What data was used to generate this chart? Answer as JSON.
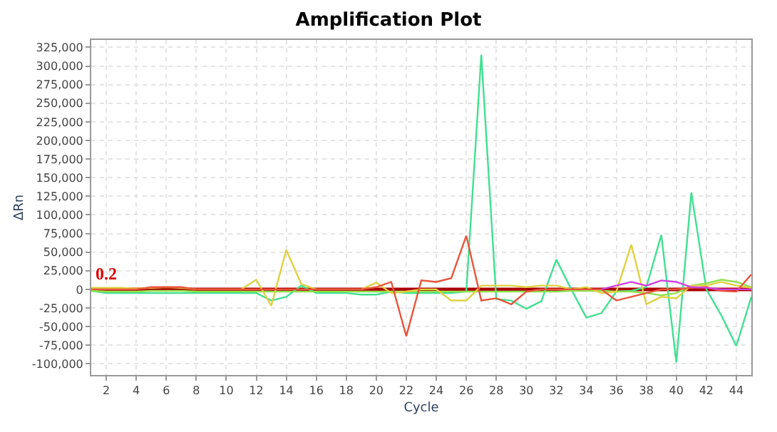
{
  "chart_data": {
    "type": "line",
    "title": "Amplification Plot",
    "xlabel": "Cycle",
    "ylabel": "ΔRn",
    "x": [
      1,
      2,
      3,
      4,
      5,
      6,
      7,
      8,
      9,
      10,
      11,
      12,
      13,
      14,
      15,
      16,
      17,
      18,
      19,
      20,
      21,
      22,
      23,
      24,
      25,
      26,
      27,
      28,
      29,
      30,
      31,
      32,
      33,
      34,
      35,
      36,
      37,
      38,
      39,
      40,
      41,
      42,
      43,
      44,
      45
    ],
    "series": [
      {
        "color": "#40e090",
        "values": [
          -2000,
          -5000,
          -5000,
          -5000,
          -5000,
          -5000,
          -5000,
          -5000,
          -5000,
          -5000,
          -5000,
          -5000,
          -15000,
          -10000,
          5000,
          -5000,
          -5000,
          -5000,
          -7000,
          -7000,
          -3000,
          -5000,
          -5000,
          -5000,
          -5000,
          -3000,
          315000,
          -13000,
          -15000,
          -26000,
          -16000,
          40000,
          0,
          -38000,
          -32000,
          -3000,
          -2000,
          3000,
          73000,
          -98000,
          130000,
          0,
          -35000,
          -76000,
          -10000
        ]
      },
      {
        "color": "#90e050",
        "values": [
          -2000,
          -3000,
          -3000,
          -3000,
          -2000,
          -2000,
          -2000,
          -3000,
          -3000,
          -3000,
          -3000,
          -3000,
          -3000,
          -3000,
          -3000,
          -3000,
          -3000,
          -3000,
          -3000,
          -3000,
          -3000,
          -3000,
          -3000,
          -3000,
          -3000,
          -3000,
          -3000,
          -3000,
          -3000,
          -3000,
          -3000,
          -3000,
          -2000,
          -2000,
          -2000,
          -3000,
          -3000,
          -5000,
          -8000,
          -5000,
          5000,
          8000,
          13000,
          10000,
          3000
        ]
      },
      {
        "color": "#e0d040",
        "values": [
          2000,
          2000,
          2000,
          1000,
          2000,
          3000,
          2000,
          0,
          0,
          0,
          0,
          13000,
          -22000,
          53000,
          7000,
          0,
          0,
          0,
          0,
          9000,
          -5000,
          -3000,
          0,
          0,
          -15000,
          -15000,
          5000,
          5000,
          5000,
          3000,
          5000,
          5000,
          0,
          3000,
          -5000,
          -3000,
          60000,
          -20000,
          -10000,
          -12000,
          5000,
          5000,
          10000,
          5000,
          2000
        ]
      },
      {
        "color": "#e8553a",
        "values": [
          0,
          0,
          0,
          0,
          3000,
          3000,
          3000,
          0,
          0,
          0,
          0,
          0,
          0,
          0,
          0,
          0,
          0,
          0,
          0,
          3000,
          10000,
          -63000,
          12000,
          10000,
          15000,
          72000,
          -15000,
          -12000,
          -20000,
          -3000,
          0,
          0,
          0,
          0,
          0,
          -15000,
          -10000,
          -5000,
          0,
          0,
          2000,
          3000,
          -2000,
          -3000,
          20000
        ]
      },
      {
        "color": "#d040e0",
        "values": [
          null,
          null,
          null,
          null,
          null,
          null,
          null,
          null,
          null,
          null,
          null,
          null,
          null,
          null,
          null,
          null,
          null,
          null,
          null,
          null,
          null,
          null,
          null,
          null,
          null,
          null,
          null,
          null,
          null,
          null,
          null,
          null,
          null,
          null,
          0,
          5000,
          10000,
          5000,
          12000,
          10000,
          3000,
          2000,
          0,
          0,
          0
        ]
      }
    ],
    "ref_lines": [
      {
        "axis": "y",
        "value": 0.2,
        "label": "0.2",
        "color": "#aa0000"
      }
    ],
    "xlim": [
      1,
      45
    ],
    "ylim": [
      -115000,
      335000
    ],
    "xticks": [
      2,
      4,
      6,
      8,
      10,
      12,
      14,
      16,
      18,
      20,
      22,
      24,
      26,
      28,
      30,
      32,
      34,
      36,
      38,
      40,
      42,
      44
    ],
    "yticks": [
      {
        "value": -100000,
        "label": "-100,000"
      },
      {
        "value": -75000,
        "label": "-75,000"
      },
      {
        "value": -50000,
        "label": "-50,000"
      },
      {
        "value": -25000,
        "label": "-25,000"
      },
      {
        "value": 0,
        "label": "0"
      },
      {
        "value": 25000,
        "label": "25,000"
      },
      {
        "value": 50000,
        "label": "50,000"
      },
      {
        "value": 75000,
        "label": "75,000"
      },
      {
        "value": 100000,
        "label": "100,000"
      },
      {
        "value": 125000,
        "label": "125,000"
      },
      {
        "value": 150000,
        "label": "150,000"
      },
      {
        "value": 175000,
        "label": "175,000"
      },
      {
        "value": 200000,
        "label": "200,000"
      },
      {
        "value": 225000,
        "label": "225,000"
      },
      {
        "value": 250000,
        "label": "250,000"
      },
      {
        "value": 275000,
        "label": "275,000"
      },
      {
        "value": 300000,
        "label": "300,000"
      },
      {
        "value": 325000,
        "label": "325,000"
      }
    ],
    "grid": true
  }
}
